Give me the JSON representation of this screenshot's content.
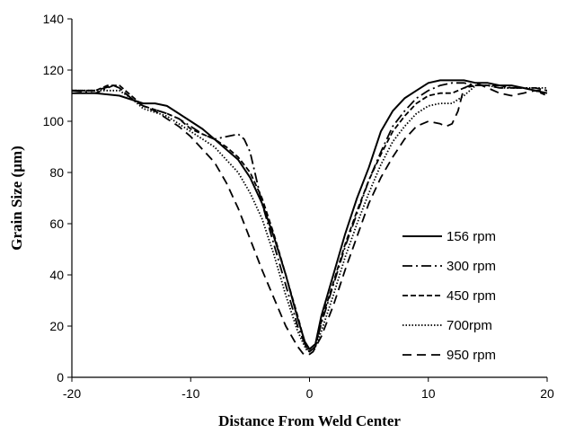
{
  "chart_data": {
    "type": "line",
    "xlabel": "Distance From Weld Center",
    "ylabel": "Grain Size (µm)",
    "xlim": [
      -20,
      20
    ],
    "ylim": [
      0,
      140
    ],
    "xticks": [
      -20,
      -10,
      0,
      10,
      20
    ],
    "yticks": [
      0,
      20,
      40,
      60,
      80,
      100,
      120,
      140
    ],
    "grid": false,
    "legend_position": "right",
    "series": [
      {
        "name": "156 rpm",
        "dash": "solid",
        "x": [
          -20,
          -18,
          -16,
          -14,
          -13,
          -12,
          -11,
          -10,
          -9,
          -8,
          -7,
          -6,
          -5,
          -4,
          -3,
          -2,
          -1,
          -0.4,
          0,
          0.5,
          1,
          2,
          3,
          4,
          5,
          6,
          7,
          8,
          9,
          10,
          11,
          12,
          13,
          14,
          15,
          16,
          17,
          18,
          19,
          20
        ],
        "y": [
          111,
          111,
          110,
          107,
          107,
          106,
          103,
          100,
          97,
          93,
          89,
          85,
          78,
          68,
          55,
          40,
          23,
          14,
          11,
          13,
          24,
          40,
          56,
          70,
          82,
          96,
          104,
          109,
          112,
          115,
          116,
          116,
          116,
          115,
          115,
          114,
          114,
          113,
          112,
          111
        ]
      },
      {
        "name": "300 rpm",
        "dash": "dashdot",
        "x": [
          -20,
          -18,
          -17,
          -16.5,
          -16,
          -15,
          -14,
          -12,
          -11,
          -10,
          -9,
          -8,
          -7,
          -6,
          -5.5,
          -5,
          -4,
          -3,
          -2,
          -1,
          -0.3,
          0,
          0.5,
          1,
          2,
          3,
          4,
          5,
          6,
          7,
          8,
          9,
          10,
          11,
          12,
          13,
          14,
          15,
          16,
          17,
          18,
          19,
          20
        ],
        "y": [
          112,
          111,
          113,
          114,
          113,
          109,
          106,
          103,
          101,
          98,
          95,
          93,
          94,
          95,
          93,
          88,
          68,
          52,
          36,
          20,
          12,
          10,
          12,
          21,
          36,
          51,
          64,
          77,
          88,
          98,
          104,
          109,
          112,
          114,
          115,
          115,
          114,
          114,
          113,
          113,
          113,
          113,
          112
        ]
      },
      {
        "name": "450 rpm",
        "dash": "dash",
        "x": [
          -20,
          -18,
          -17,
          -16.5,
          -16,
          -15,
          -14,
          -12,
          -11,
          -10,
          -9,
          -8,
          -7,
          -6,
          -5,
          -4,
          -3,
          -2,
          -1,
          -0.3,
          0,
          0.5,
          1,
          2,
          3,
          4,
          5,
          6,
          7,
          8,
          9,
          10,
          11,
          12,
          13,
          14,
          15,
          16,
          17,
          18,
          19,
          20
        ],
        "y": [
          112,
          112,
          114,
          114,
          114,
          110,
          106,
          103,
          101,
          97,
          95,
          93,
          90,
          86,
          80,
          70,
          56,
          40,
          24,
          12,
          10,
          12,
          22,
          37,
          52,
          65,
          77,
          87,
          96,
          102,
          107,
          110,
          111,
          111,
          113,
          114,
          114,
          114,
          113,
          113,
          112,
          110
        ]
      },
      {
        "name": "700rpm",
        "dash": "dot",
        "x": [
          -20,
          -18,
          -16,
          -15,
          -14,
          -12,
          -11,
          -10,
          -9,
          -8,
          -7,
          -6,
          -5,
          -4,
          -3,
          -2,
          -1,
          -0.3,
          0,
          0.5,
          1,
          2,
          3,
          4,
          5,
          6,
          7,
          8,
          9,
          10,
          11,
          12,
          13,
          14,
          15,
          16,
          17,
          18,
          19,
          20
        ],
        "y": [
          112,
          112,
          112,
          109,
          105,
          102,
          99,
          96,
          93,
          90,
          85,
          80,
          72,
          62,
          48,
          32,
          18,
          11,
          10,
          12,
          18,
          32,
          47,
          60,
          72,
          83,
          92,
          98,
          103,
          106,
          107,
          107,
          110,
          114,
          114,
          113,
          113,
          113,
          113,
          113
        ]
      },
      {
        "name": "950 rpm",
        "dash": "longdash",
        "x": [
          -20,
          -18,
          -16.5,
          -16,
          -15,
          -14,
          -13,
          -12,
          -11,
          -10,
          -9,
          -8,
          -7,
          -6,
          -5,
          -4,
          -3,
          -2,
          -1,
          -0.5,
          0,
          0.3,
          1,
          2,
          3,
          4,
          5,
          6,
          7,
          8,
          9,
          10,
          11,
          11.5,
          12,
          12.5,
          13,
          14,
          15,
          16,
          17,
          18,
          19,
          20
        ],
        "y": [
          112,
          112,
          114,
          113,
          109,
          106,
          104,
          101,
          98,
          94,
          89,
          84,
          76,
          66,
          54,
          42,
          31,
          20,
          12,
          9,
          9,
          10,
          16,
          28,
          42,
          55,
          68,
          78,
          86,
          93,
          98,
          100,
          99,
          98,
          99,
          104,
          113,
          115,
          113,
          111,
          110,
          111,
          112,
          112
        ]
      }
    ]
  }
}
